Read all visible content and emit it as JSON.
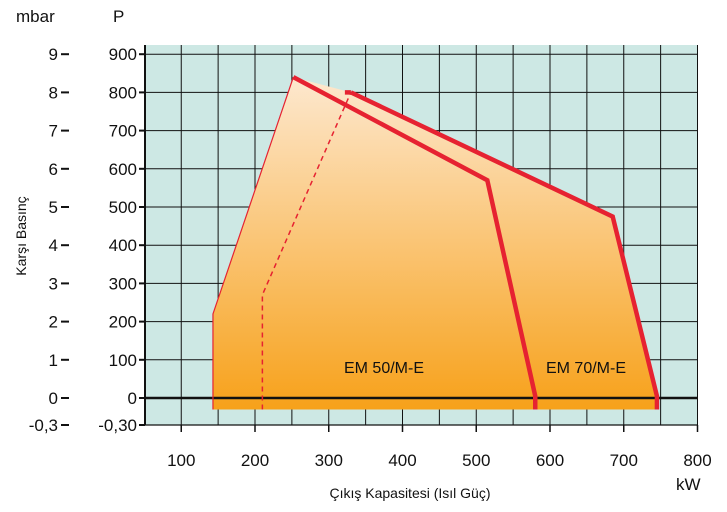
{
  "chart_data": {
    "type": "area",
    "xlabel": "Çıkış Kapasitesi (Isıl Güç)",
    "xunit": "kW",
    "ylabel": "Karşı Basınç",
    "y_units": [
      "mbar",
      "P"
    ],
    "xlim": [
      0,
      800
    ],
    "ylim_pressure": [
      -0.3,
      9
    ],
    "x_ticks": [
      100,
      200,
      300,
      400,
      500,
      600,
      700,
      800
    ],
    "y_ticks_mbar": [
      "9",
      "8",
      "7",
      "6",
      "5",
      "4",
      "3",
      "2",
      "1",
      "0",
      "-0,3"
    ],
    "y_ticks_P": [
      "900",
      "800",
      "700",
      "600",
      "500",
      "400",
      "300",
      "200",
      "100",
      "0",
      "-0,30"
    ],
    "grid": true,
    "colors": {
      "plot_bg": "#cde8e4",
      "grid": "#111111",
      "border_line": "#e62231",
      "fill_top": "#fde8cf",
      "fill_bottom": "#f7a11a",
      "zero_line": "#111111"
    },
    "series": [
      {
        "name": "EM 50/M-E",
        "points": [
          [
            143,
            -0.3
          ],
          [
            143,
            2.2
          ],
          [
            252,
            8.4
          ],
          [
            515,
            5.7
          ],
          [
            580,
            0.05
          ],
          [
            580,
            -0.3
          ]
        ],
        "dashed_points": [
          [
            210,
            -0.3
          ],
          [
            210,
            2.7
          ],
          [
            330,
            8.0
          ]
        ]
      },
      {
        "name": "EM 70/M-E",
        "points": [
          [
            143,
            -0.3
          ],
          [
            143,
            2.2
          ],
          [
            252,
            8.4
          ],
          [
            330,
            8.0
          ],
          [
            685,
            4.75
          ],
          [
            745,
            0.05
          ],
          [
            745,
            -0.3
          ]
        ]
      }
    ]
  }
}
